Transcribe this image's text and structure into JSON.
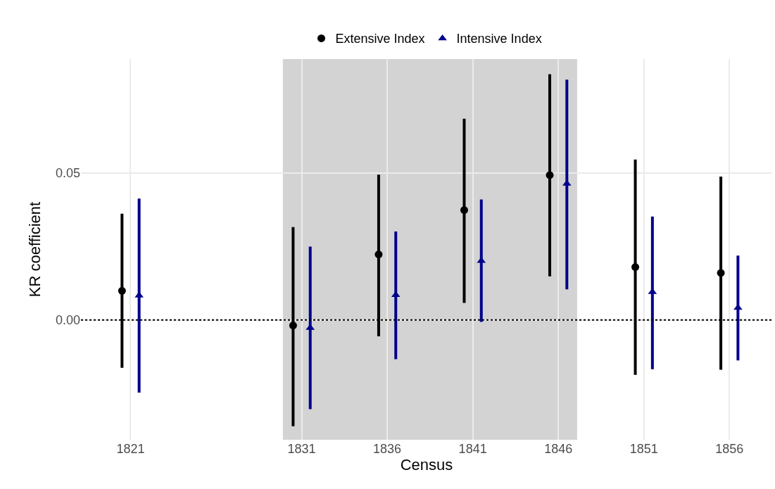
{
  "chart_data": {
    "type": "scatter",
    "xlabel": "Census",
    "ylabel": "KR coefficient",
    "xlim": [
      1818.1,
      1858.5
    ],
    "xticks": [
      1821,
      1831,
      1836,
      1841,
      1846,
      1851,
      1856
    ],
    "ylim": [
      -0.0408,
      0.0888
    ],
    "yticks": [
      {
        "value": 0,
        "label": "0.00"
      },
      0.05
    ],
    "grid": true,
    "legend": "top",
    "series": [
      {
        "name": "Extensive Index",
        "color": "#000000",
        "marker": "circle",
        "x": [
          1820.5,
          1830.5,
          1835.5,
          1840.5,
          1845.5,
          1850.5,
          1855.5
        ],
        "values": [
          0.0099,
          -0.0019,
          0.0223,
          0.0374,
          0.0493,
          0.018,
          0.016
        ],
        "errors": [
          [
            -0.0158,
            0.0357
          ],
          [
            -0.0357,
            0.0311
          ],
          [
            -0.0051,
            0.049
          ],
          [
            0.0063,
            0.068
          ],
          [
            0.0153,
            0.0832
          ],
          [
            -0.0182,
            0.0541
          ],
          [
            -0.0165,
            0.0483
          ]
        ]
      },
      {
        "name": "Intensive Index",
        "color": "#00008b",
        "marker": "triangle",
        "x": [
          1821.5,
          1831.5,
          1836.5,
          1841.5,
          1846.5,
          1851.5,
          1856.5
        ],
        "values": [
          0.0083,
          -0.0027,
          0.0085,
          0.0201,
          0.0464,
          0.0095,
          0.0041
        ],
        "errors": [
          [
            -0.0243,
            0.0408
          ],
          [
            -0.0299,
            0.0245
          ],
          [
            -0.0129,
            0.0296
          ],
          [
            -0.0002,
            0.0405
          ],
          [
            0.0109,
            0.0813
          ],
          [
            -0.0163,
            0.0347
          ],
          [
            -0.0133,
            0.0214
          ]
        ]
      }
    ],
    "ref_lines": [
      {
        "axis": "y",
        "value": 0,
        "color": "#000000",
        "line_style": "dotted"
      }
    ],
    "bands": [
      {
        "axis": "x",
        "from": 1829.9,
        "to": 1847.1,
        "color": "#d3d3d3"
      }
    ]
  }
}
